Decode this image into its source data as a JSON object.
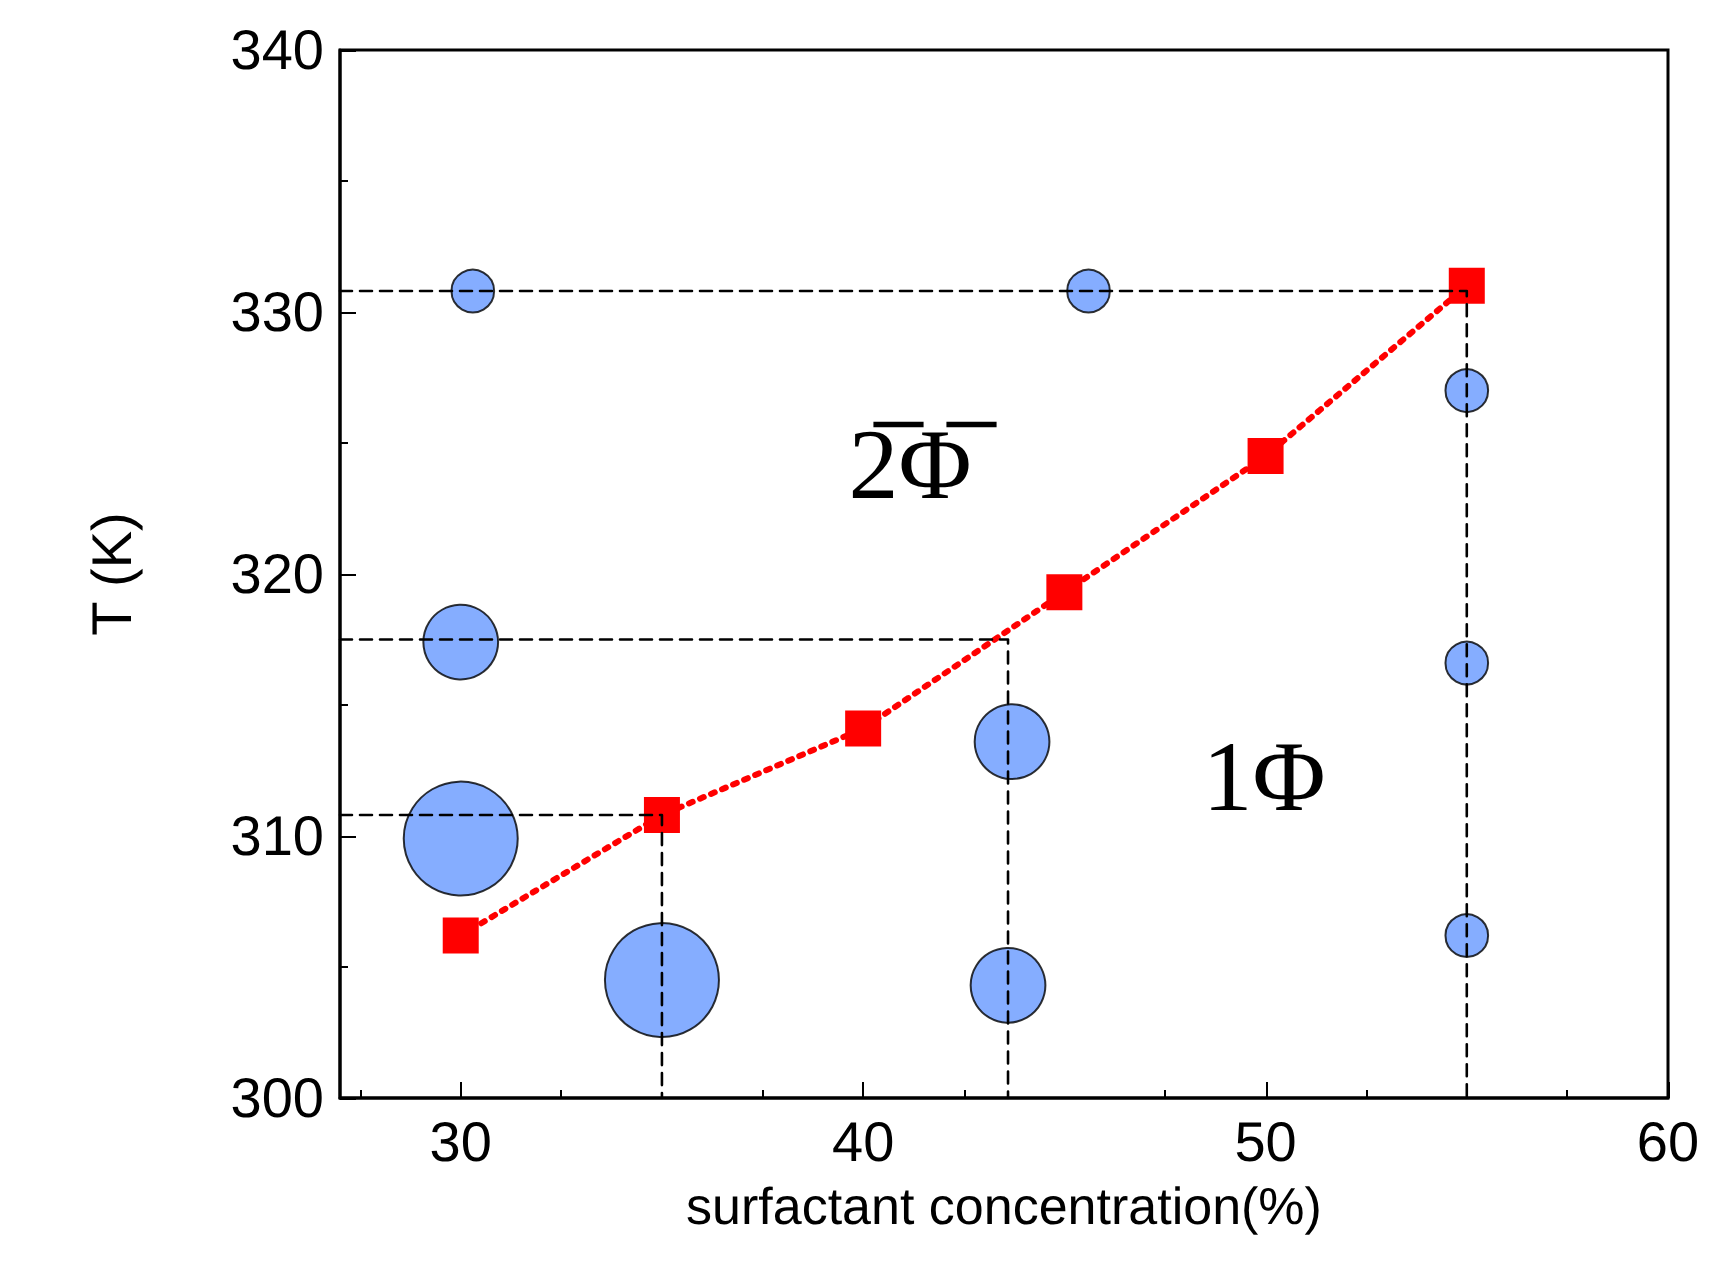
{
  "chart_data": {
    "type": "bubble",
    "xlabel": "surfactant concentration(%)",
    "ylabel": "T (K)",
    "xlim": [
      27,
      60
    ],
    "xticks": [
      30,
      40,
      50,
      60
    ],
    "ylim": [
      300,
      340
    ],
    "yticks": [
      300,
      310,
      320,
      330,
      340
    ],
    "grid": false,
    "series": [
      {
        "type": "line",
        "color": "#000000",
        "line_style": "dashed",
        "marker": "none",
        "x": [
          27,
          55,
          55
        ],
        "values": [
          330.8,
          330.8,
          300
        ]
      },
      {
        "type": "line",
        "color": "#000000",
        "line_style": "dashed",
        "marker": "none",
        "x": [
          27,
          43.6,
          43.6
        ],
        "values": [
          317.5,
          317.5,
          300
        ]
      },
      {
        "type": "line",
        "color": "#000000",
        "line_style": "dashed",
        "marker": "none",
        "x": [
          27,
          35,
          35
        ],
        "values": [
          310.8,
          310.8,
          300
        ]
      },
      {
        "color": "#6699ff",
        "marker": "circle",
        "x": [
          30.3,
          45.6,
          55,
          55,
          55,
          30,
          30,
          35,
          43.7,
          43.6
        ],
        "values": [
          330.8,
          330.8,
          327,
          316.6,
          306.2,
          317.4,
          309.9,
          304.5,
          313.6,
          304.3
        ],
        "sizes": [
          0.14,
          0.14,
          0.14,
          0.14,
          0.14,
          0.43,
          1,
          1,
          0.43,
          0.43
        ]
      },
      {
        "type": "line",
        "color": "#ff0000",
        "line_style": "dotted",
        "marker": "square",
        "x": [
          30,
          35,
          40,
          45,
          50,
          55
        ],
        "values": [
          306.2,
          310.8,
          314.1,
          319.3,
          324.5,
          331
        ]
      }
    ],
    "annotations": [
      "2̅Φ̅",
      "1Φ"
    ]
  }
}
